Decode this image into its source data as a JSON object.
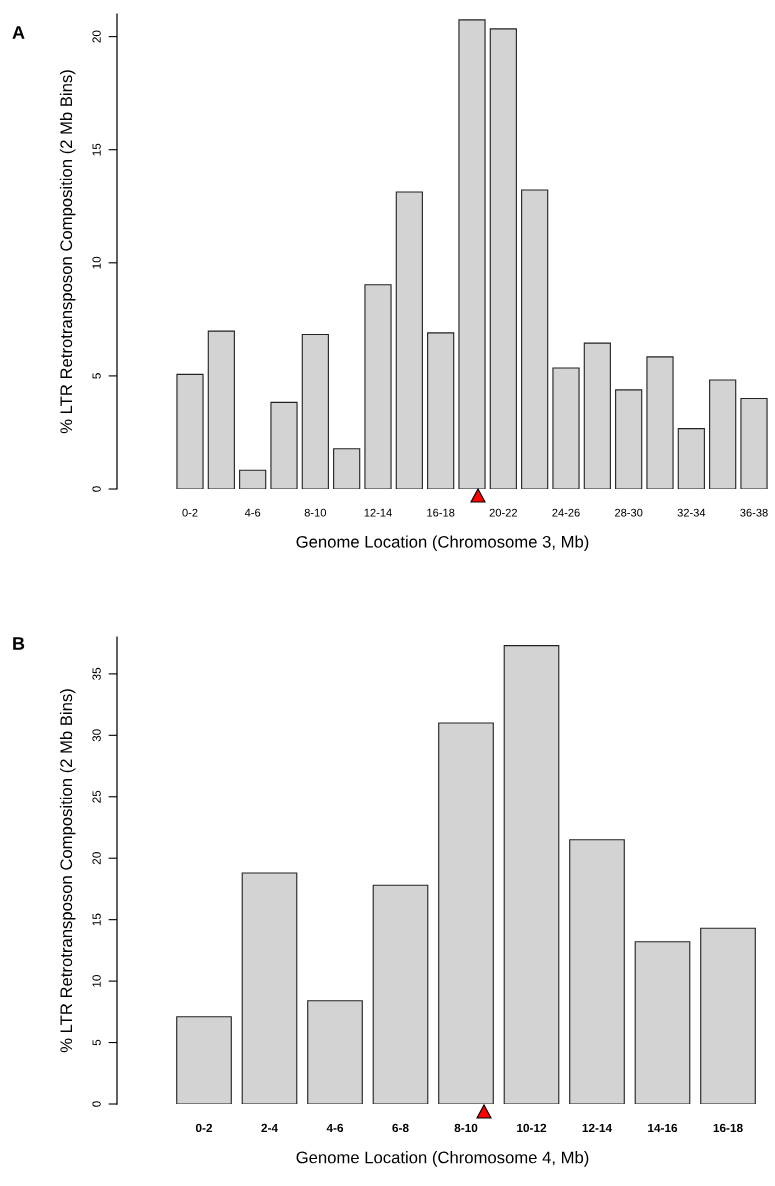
{
  "chart_data": [
    {
      "type": "bar",
      "title": "A",
      "xlabel": "Genome Location (Chromosome 3, Mb)",
      "ylabel": "% LTR Retrotransposon Composition (2 Mb Bins)",
      "categories": [
        "0-2",
        null,
        "4-6",
        null,
        "8-10",
        null,
        "12-14",
        null,
        "16-18",
        null,
        "20-22",
        null,
        "24-26",
        null,
        "28-30",
        null,
        "32-34",
        null,
        "36-38"
      ],
      "series": [
        {
          "color": "#d3d3d3",
          "values": [
            5.07,
            6.98,
            0.83,
            3.83,
            6.83,
            1.78,
            9.03,
            13.13,
            6.9,
            20.74,
            20.34,
            13.22,
            5.35,
            6.45,
            4.38,
            5.84,
            2.67,
            4.82,
            4.0
          ]
        }
      ],
      "ylim": [
        0,
        21
      ],
      "yticks": [
        0,
        5,
        10,
        15,
        20
      ],
      "grid": false,
      "legend": false
    },
    {
      "type": "bar",
      "title": "B",
      "xlabel": "Genome Location (Chromosome 4, Mb)",
      "ylabel": "% LTR Retrotransposon Composition (2 Mb Bins)",
      "categories": [
        "0-2",
        "2-4",
        "4-6",
        "6-8",
        "8-10",
        "10-12",
        "12-14",
        "14-16",
        "16-18"
      ],
      "series": [
        {
          "color": "#d3d3d3",
          "values": [
            7.1,
            18.8,
            8.4,
            17.8,
            31.0,
            37.3,
            21.5,
            13.2,
            14.3
          ]
        }
      ],
      "ylim": [
        0,
        38
      ],
      "yticks": [
        0,
        5,
        10,
        15,
        20,
        25,
        30,
        35
      ],
      "grid": false,
      "legend": false
    }
  ]
}
